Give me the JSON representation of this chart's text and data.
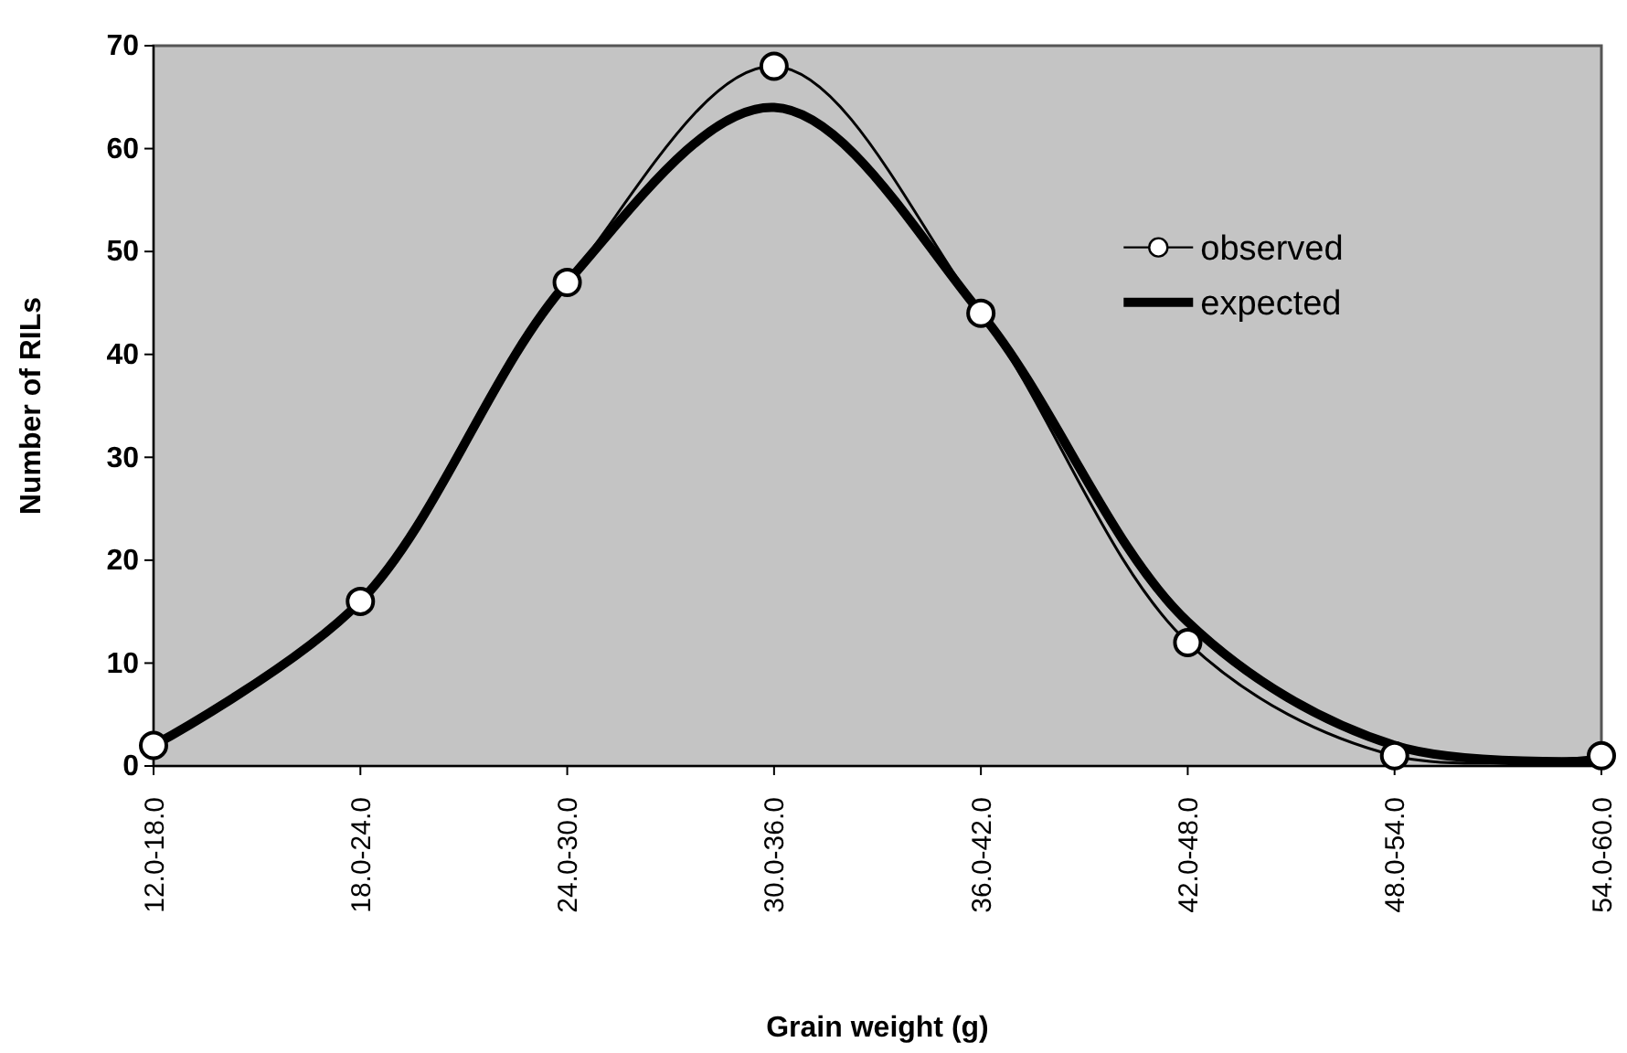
{
  "chart_data": {
    "type": "line",
    "xlabel": "Grain weight (g)",
    "ylabel": "Number of RILs",
    "categories": [
      "12.0-18.0",
      "18.0-24.0",
      "24.0-30.0",
      "30.0-36.0",
      "36.0-42.0",
      "42.0-48.0",
      "48.0-54.0",
      "54.0-60.0"
    ],
    "series": [
      {
        "name": "observed",
        "color": "#000000",
        "marker": "circle",
        "values": [
          2,
          16,
          47,
          68,
          44,
          12,
          1,
          1
        ]
      },
      {
        "name": "expected",
        "color": "#000000",
        "marker": "none",
        "values": [
          2,
          16,
          47,
          64,
          44,
          14,
          2,
          0.5
        ]
      }
    ],
    "ylim": [
      0,
      70
    ],
    "yticks": [
      0,
      10,
      20,
      30,
      40,
      50,
      60,
      70
    ],
    "grid": false,
    "legend": "top right",
    "line_style": "solid"
  }
}
